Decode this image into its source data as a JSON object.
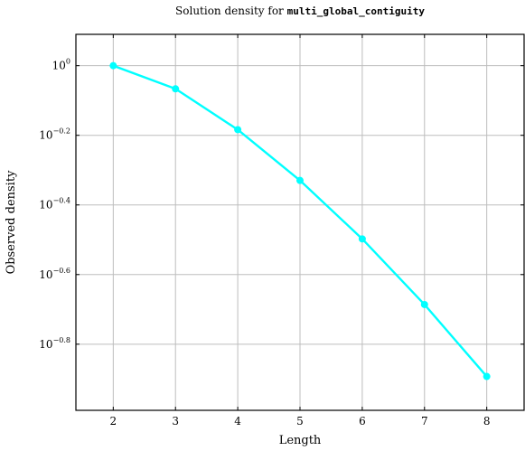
{
  "chart_data": {
    "type": "line",
    "title_prefix": "Solution density for ",
    "title_code": "multi_global_contiguity",
    "xlabel": "Length",
    "ylabel": "Observed density",
    "y_scale": "log10",
    "xlim": [
      1.4,
      8.6
    ],
    "ylim_log10": [
      -0.99,
      0.09
    ],
    "x_ticks": [
      2,
      3,
      4,
      5,
      6,
      7,
      8
    ],
    "y_ticks_log10": [
      0,
      -0.2,
      -0.4,
      -0.6,
      -0.8
    ],
    "y_tick_labels": [
      {
        "base": "10",
        "exp": "0"
      },
      {
        "base": "10",
        "exp": "−0.2"
      },
      {
        "base": "10",
        "exp": "−0.4"
      },
      {
        "base": "10",
        "exp": "−0.6"
      },
      {
        "base": "10",
        "exp": "−0.8"
      }
    ],
    "grid": true,
    "legend": "none",
    "series": [
      {
        "color": "#00ffff",
        "x": [
          2,
          3,
          4,
          5,
          6,
          7,
          8
        ],
        "y": [
          1.0,
          0.858,
          0.655,
          0.468,
          0.318,
          0.206,
          0.128
        ]
      }
    ]
  }
}
